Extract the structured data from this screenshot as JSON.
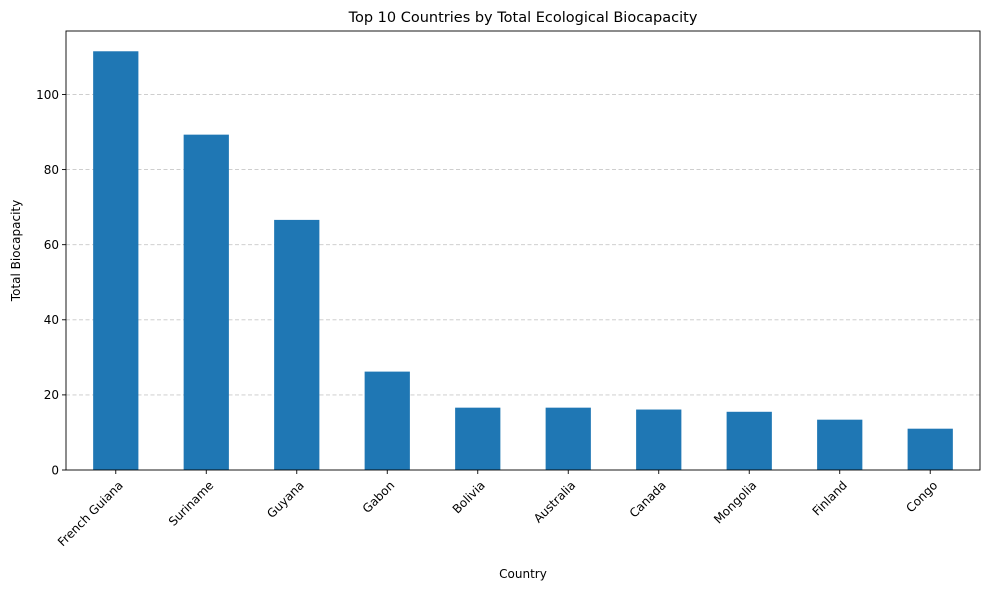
{
  "chart_data": {
    "type": "bar",
    "title": "Top 10 Countries by Total Ecological Biocapacity",
    "xlabel": "Country",
    "ylabel": "Total Biocapacity",
    "categories": [
      "French Guiana",
      "Suriname",
      "Guyana",
      "Gabon",
      "Bolivia",
      "Australia",
      "Canada",
      "Mongolia",
      "Finland",
      "Congo"
    ],
    "values": [
      111.5,
      89.3,
      66.6,
      26.2,
      16.6,
      16.6,
      16.1,
      15.5,
      13.4,
      11.0
    ],
    "ylim": [
      0,
      116.9
    ],
    "yticks": [
      0,
      20,
      40,
      60,
      80,
      100
    ],
    "grid": "y-dashed",
    "bar_color": "#1f77b4"
  }
}
